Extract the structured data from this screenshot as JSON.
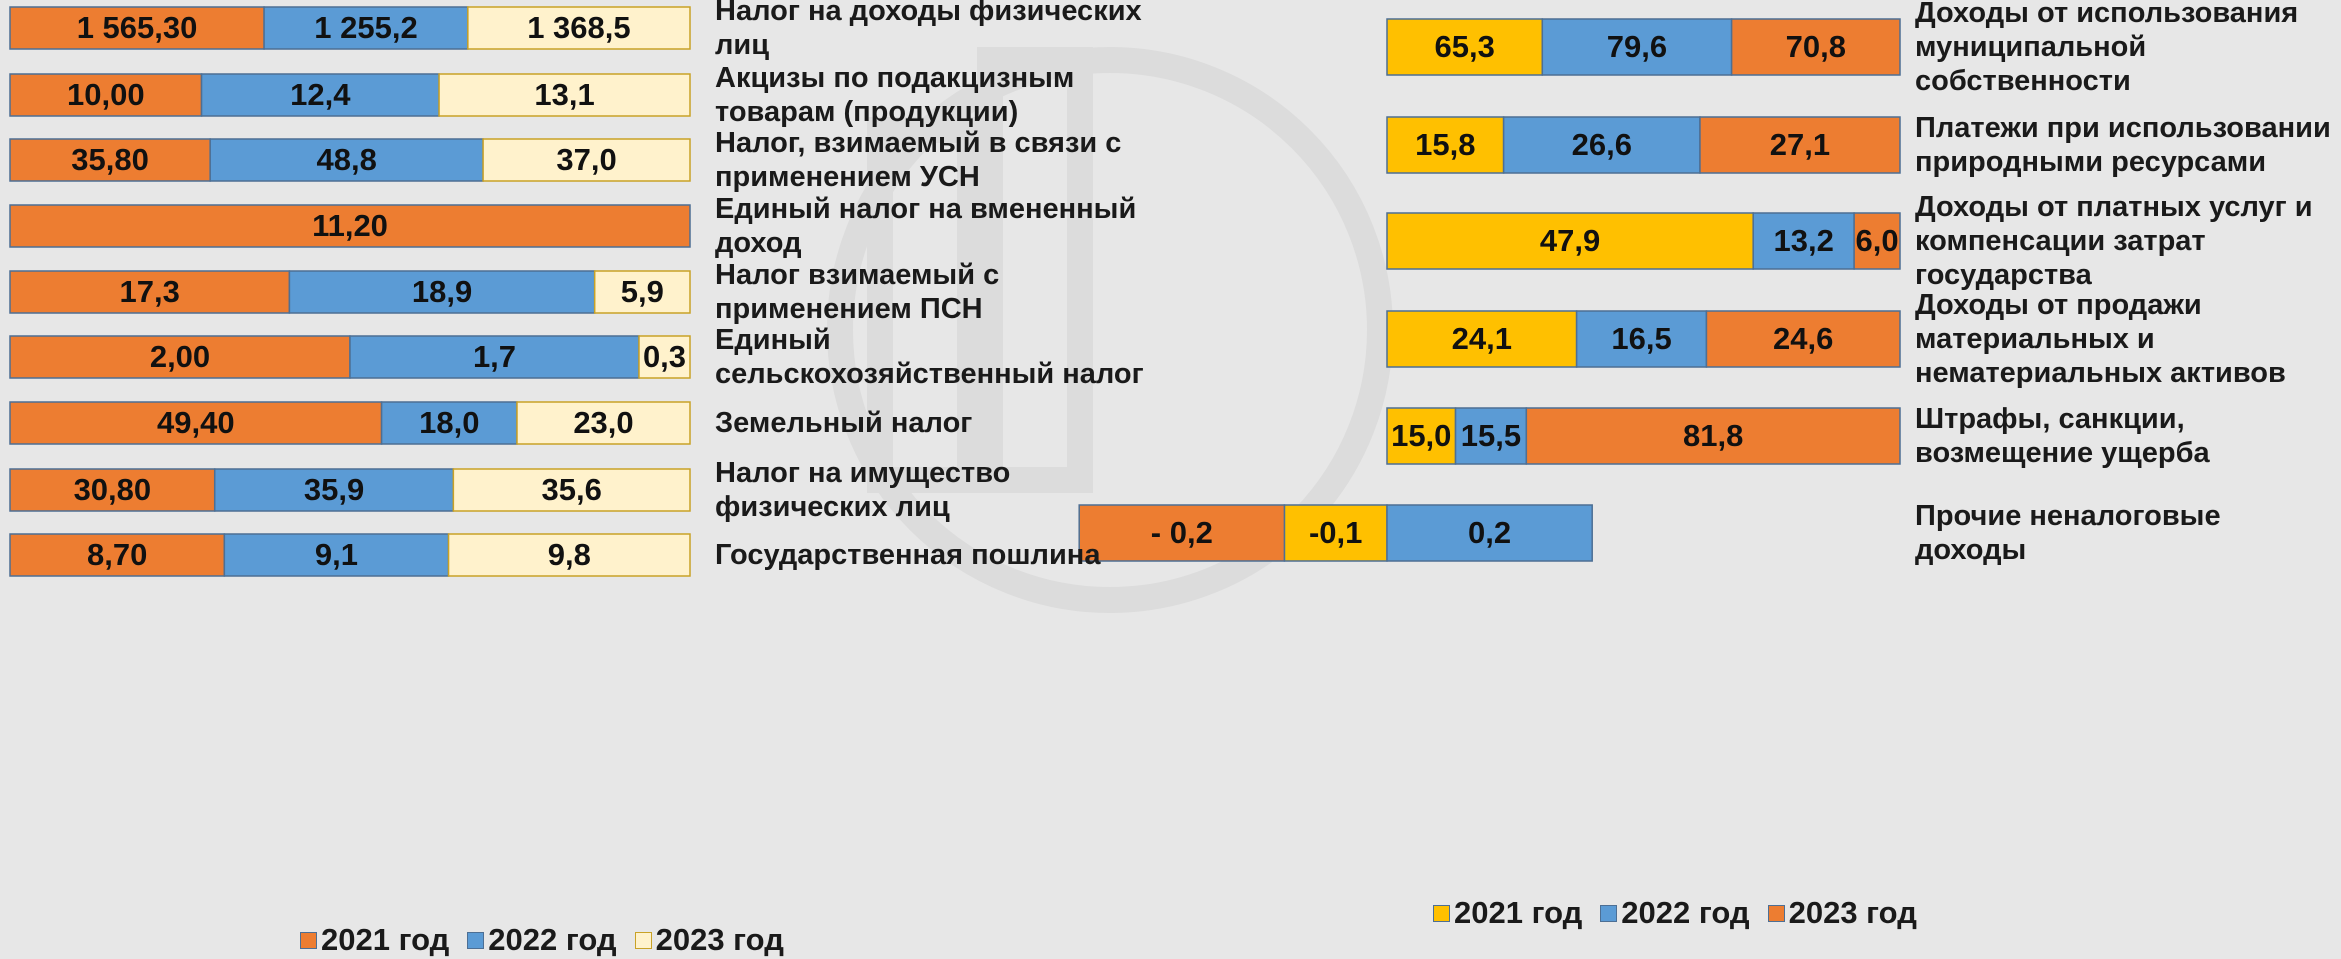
{
  "chart_data": [
    {
      "type": "bar",
      "stacked_percent": true,
      "categories": [
        "Налог на доходы физических лиц",
        "Акцизы по подакцизным товарам (продукции)",
        "Налог, взимаемый в связи с применением УСН",
        "Единый налог на вмененный доход",
        "Налог взимаемый с применением ПСН",
        "Единый сельскохозяйственный налог",
        "Земельный налог",
        "Налог на имущество физических лиц",
        "Государственная пошлина"
      ],
      "series": [
        {
          "name": "2021 год",
          "color": "#ed7d31",
          "values": [
            1565.3,
            10.0,
            35.8,
            11.2,
            17.3,
            2.0,
            49.4,
            30.8,
            8.7
          ],
          "value_labels": [
            "1 565,30",
            "10,00",
            "35,80",
            "11,20",
            "17,3",
            "2,00",
            "49,40",
            "30,80",
            "8,70"
          ]
        },
        {
          "name": "2022 год",
          "color": "#5b9bd5",
          "values": [
            1255.2,
            12.4,
            48.8,
            null,
            18.9,
            1.7,
            18.0,
            35.9,
            9.1
          ],
          "value_labels": [
            "1 255,2",
            "12,4",
            "48,8",
            null,
            "18,9",
            "1,7",
            "18,0",
            "35,9",
            "9,1"
          ]
        },
        {
          "name": "2023 год",
          "color": "#fff2cc",
          "values": [
            1368.5,
            13.1,
            37.0,
            null,
            5.9,
            0.3,
            23.0,
            35.6,
            9.8
          ],
          "value_labels": [
            "1 368,5",
            "13,1",
            "37,0",
            null,
            "5,9",
            "0,3",
            "23,0",
            "35,6",
            "9,8"
          ]
        }
      ]
    },
    {
      "type": "bar",
      "stacked_percent": true,
      "categories": [
        "Доходы от использования муниципальной собственности",
        "Платежи при использовании природными ресурсами",
        "Доходы от платных услуг и компенсации затрат государства",
        "Доходы от продажи материальных и нематериальных активов",
        "Штрафы, санкции, возмещение ущерба",
        "Прочие неналоговые доходы"
      ],
      "series": [
        {
          "name": "2021 год",
          "color": "#ffc000",
          "values": [
            65.3,
            15.8,
            47.9,
            24.1,
            15.0,
            -0.1
          ],
          "value_labels": [
            "65,3",
            "15,8",
            "47,9",
            "24,1",
            "15,0",
            "-0,1"
          ]
        },
        {
          "name": "2022 год",
          "color": "#5b9bd5",
          "values": [
            79.6,
            26.6,
            13.2,
            16.5,
            15.5,
            0.2
          ],
          "value_labels": [
            "79,6",
            "26,6",
            "13,2",
            "16,5",
            "15,5",
            "0,2"
          ]
        },
        {
          "name": "2023 год",
          "color": "#ed7d31",
          "values": [
            70.8,
            27.1,
            6.0,
            24.6,
            81.8,
            -0.2
          ],
          "value_labels": [
            "70,8",
            "27,1",
            "6,0",
            "24,6",
            "81,8",
            "- 0,2"
          ]
        }
      ]
    }
  ]
}
